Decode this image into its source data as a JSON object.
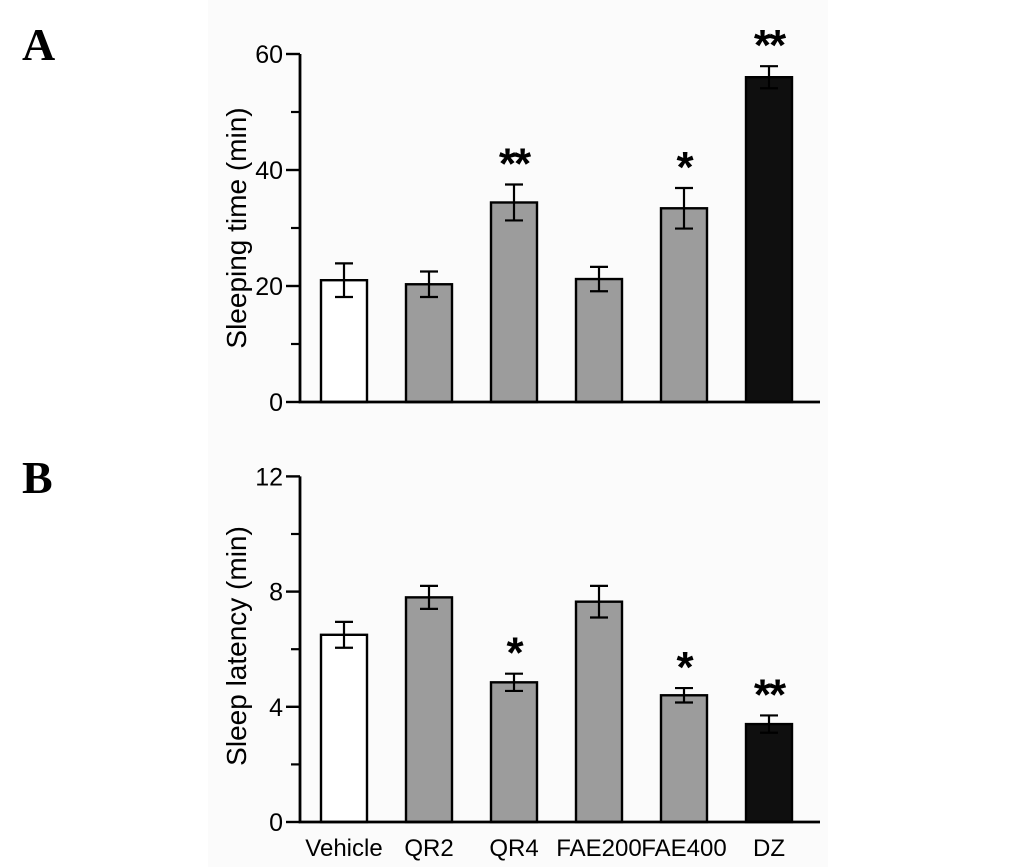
{
  "figure": {
    "background_color": "#ffffff",
    "figure_tint_color": "#fbfbfb",
    "axis_color": "#000000",
    "text_color": "#000000"
  },
  "chart_data": [
    {
      "type": "bar",
      "panel_label": "A",
      "ylabel": "Sleeping time (min)",
      "xlabel": "",
      "ylim": [
        0,
        60
      ],
      "yticks_major": [
        0,
        20,
        40,
        60
      ],
      "yticks_minor": [
        10,
        30,
        50
      ],
      "grid": "off",
      "legend": "none",
      "show_category_labels": false,
      "categories": [
        "Vehicle",
        "QR2",
        "QR4",
        "FAE200",
        "FAE400",
        "DZ"
      ],
      "values": [
        21,
        20.3,
        34.4,
        21.2,
        33.4,
        56
      ],
      "errors": [
        2.9,
        2.2,
        3.1,
        2.1,
        3.5,
        1.9
      ],
      "significance": [
        "",
        "",
        "**",
        "",
        "*",
        "**"
      ],
      "bar_fill_colors": [
        "#ffffff",
        "#9c9c9c",
        "#9c9c9c",
        "#9c9c9c",
        "#9c9c9c",
        "#0f0f0f"
      ],
      "bar_edge_color": "#000000"
    },
    {
      "type": "bar",
      "panel_label": "B",
      "ylabel": "Sleep latency (min)",
      "xlabel": "",
      "ylim": [
        0,
        12
      ],
      "yticks_major": [
        0,
        4,
        8,
        12
      ],
      "yticks_minor": [
        2,
        6,
        10
      ],
      "grid": "off",
      "legend": "none",
      "show_category_labels": true,
      "categories": [
        "Vehicle",
        "QR2",
        "QR4",
        "FAE200",
        "FAE400",
        "DZ"
      ],
      "values": [
        6.5,
        7.8,
        4.85,
        7.65,
        4.4,
        3.4
      ],
      "errors": [
        0.45,
        0.4,
        0.3,
        0.55,
        0.25,
        0.3
      ],
      "significance": [
        "",
        "",
        "*",
        "",
        "*",
        "**"
      ],
      "bar_fill_colors": [
        "#ffffff",
        "#9c9c9c",
        "#9c9c9c",
        "#9c9c9c",
        "#9c9c9c",
        "#0f0f0f"
      ],
      "bar_edge_color": "#000000"
    }
  ]
}
